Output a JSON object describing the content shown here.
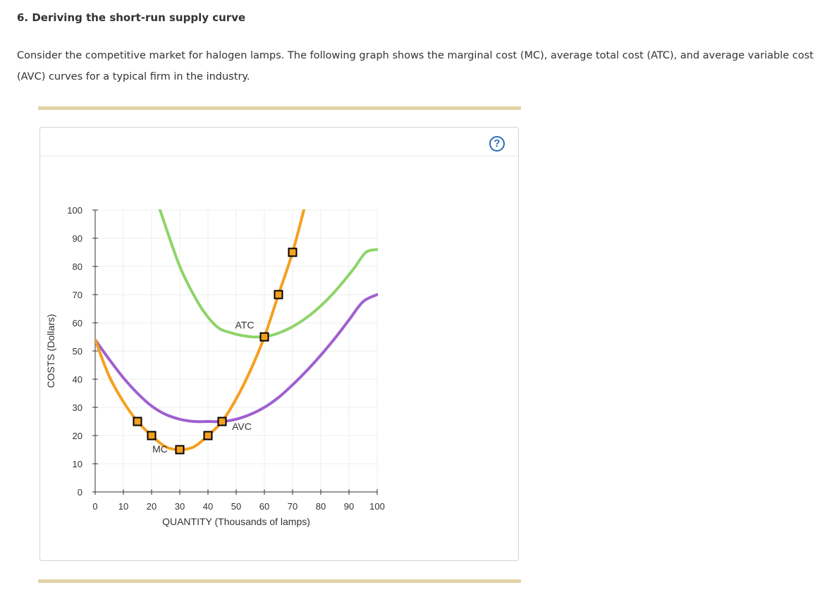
{
  "page": {
    "title": "6. Deriving the short-run supply curve",
    "intro": "Consider the competitive market for halogen lamps. The following graph shows the marginal cost (MC), average total cost (ATC), and average variable cost (AVC) curves for a typical firm in the industry.",
    "help_label": "?"
  },
  "chart_data": {
    "type": "line",
    "title": "",
    "xlabel": "QUANTITY (Thousands of lamps)",
    "ylabel": "COSTS (Dollars)",
    "xlim": [
      0,
      100
    ],
    "ylim": [
      0,
      100
    ],
    "x_ticks": [
      0,
      10,
      20,
      30,
      40,
      50,
      60,
      70,
      80,
      90,
      100
    ],
    "y_ticks": [
      0,
      10,
      20,
      30,
      40,
      50,
      60,
      70,
      80,
      90,
      100
    ],
    "grid": true,
    "series": [
      {
        "name": "ATC",
        "color": "#8ed46a",
        "points": [
          [
            23,
            100
          ],
          [
            30,
            80
          ],
          [
            36,
            68
          ],
          [
            40,
            62
          ],
          [
            44,
            58
          ],
          [
            48,
            56.5
          ],
          [
            52,
            55.5
          ],
          [
            56,
            55
          ],
          [
            60,
            55.1
          ],
          [
            64,
            56
          ],
          [
            68,
            57.6
          ],
          [
            72,
            59.8
          ],
          [
            76,
            62.6
          ],
          [
            80,
            66
          ],
          [
            84,
            70
          ],
          [
            88,
            74.6
          ],
          [
            92,
            79.6
          ],
          [
            96,
            85
          ],
          [
            100,
            86
          ]
        ]
      },
      {
        "name": "AVC",
        "color": "#a060d0",
        "points": [
          [
            0,
            54
          ],
          [
            5,
            47
          ],
          [
            10,
            40.5
          ],
          [
            15,
            35
          ],
          [
            20,
            30.5
          ],
          [
            25,
            27.5
          ],
          [
            30,
            25.8
          ],
          [
            35,
            25
          ],
          [
            40,
            25
          ],
          [
            45,
            25
          ],
          [
            50,
            25.8
          ],
          [
            55,
            27.5
          ],
          [
            60,
            30
          ],
          [
            65,
            33.5
          ],
          [
            70,
            38
          ],
          [
            75,
            43
          ],
          [
            80,
            48.5
          ],
          [
            85,
            54.5
          ],
          [
            90,
            61
          ],
          [
            95,
            67.5
          ],
          [
            100,
            70
          ]
        ]
      },
      {
        "name": "MC",
        "color": "#f5a020",
        "points": [
          [
            0,
            54
          ],
          [
            5,
            41
          ],
          [
            10,
            32
          ],
          [
            15,
            25
          ],
          [
            20,
            20
          ],
          [
            25,
            16
          ],
          [
            30,
            15
          ],
          [
            35,
            16
          ],
          [
            40,
            20
          ],
          [
            45,
            25
          ],
          [
            50,
            33
          ],
          [
            55,
            43
          ],
          [
            60,
            55
          ],
          [
            65,
            70
          ],
          [
            70,
            85
          ],
          [
            74,
            100
          ]
        ],
        "markers": [
          [
            15,
            25
          ],
          [
            20,
            20
          ],
          [
            30,
            15
          ],
          [
            40,
            20
          ],
          [
            45,
            25
          ],
          [
            60,
            55
          ],
          [
            65,
            70
          ],
          [
            70,
            85
          ]
        ]
      }
    ],
    "annotations": [
      {
        "text": "ATC",
        "x": 53,
        "y": 58
      },
      {
        "text": "AVC",
        "x": 52,
        "y": 22
      },
      {
        "text": "MC",
        "x": 23,
        "y": 14
      }
    ],
    "marker_color": "#f5a020"
  }
}
